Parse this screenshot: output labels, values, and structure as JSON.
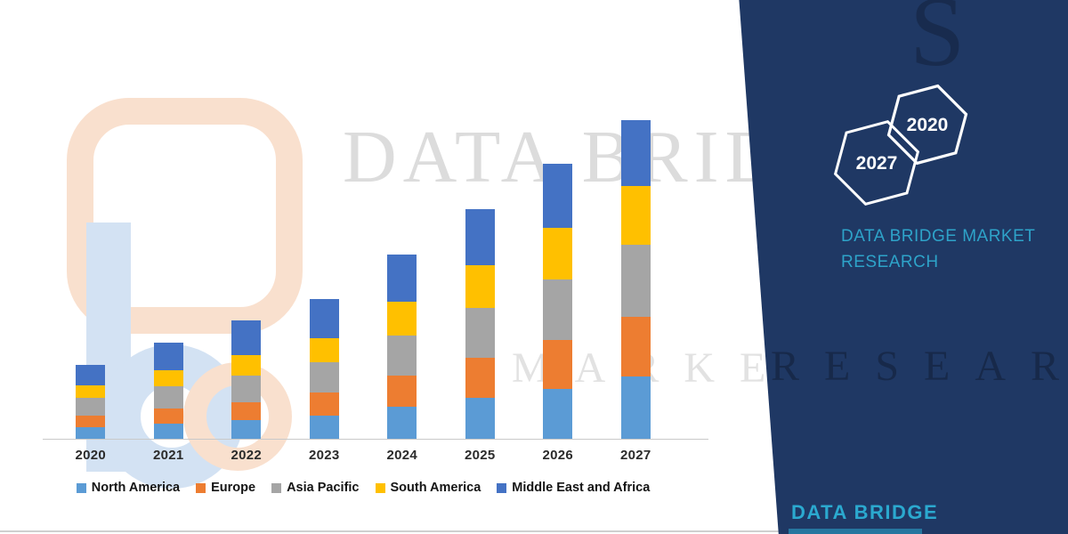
{
  "chart_data": {
    "type": "bar",
    "stacked": true,
    "title": "",
    "xlabel": "",
    "ylabel": "",
    "grid": false,
    "legend_position": "bottom",
    "y_axis_labels_visible": false,
    "categories": [
      "2020",
      "2021",
      "2022",
      "2023",
      "2024",
      "2025",
      "2026",
      "2027"
    ],
    "series": [
      {
        "name": "North America",
        "color": "#5B9BD5",
        "values": [
          13,
          17,
          21,
          26,
          36,
          46,
          56,
          70
        ]
      },
      {
        "name": "Europe",
        "color": "#ED7D31",
        "values": [
          13,
          17,
          20,
          26,
          35,
          45,
          55,
          67
        ]
      },
      {
        "name": "Asia Pacific",
        "color": "#A5A5A5",
        "values": [
          20,
          25,
          30,
          34,
          45,
          56,
          68,
          81
        ]
      },
      {
        "name": "South America",
        "color": "#FFC000",
        "values": [
          14,
          18,
          23,
          27,
          38,
          48,
          58,
          66
        ]
      },
      {
        "name": "Middle East and Africa",
        "color": "#4472C4",
        "values": [
          23,
          31,
          39,
          44,
          53,
          63,
          72,
          74
        ]
      }
    ]
  },
  "watermark": {
    "primary": "DATA BRIDGE",
    "secondary": "MARKET",
    "navy_secondary": "RESEARCH",
    "navy_letter": "S"
  },
  "side_panel": {
    "background_color": "#1F3864",
    "accent_color": "#2EA3C9",
    "heading": "DATA BRIDGE MARKET RESEARCH",
    "hexagons": [
      {
        "year": "2027"
      },
      {
        "year": "2020"
      }
    ]
  },
  "footer_logo": {
    "text": "DATA BRIDGE"
  }
}
